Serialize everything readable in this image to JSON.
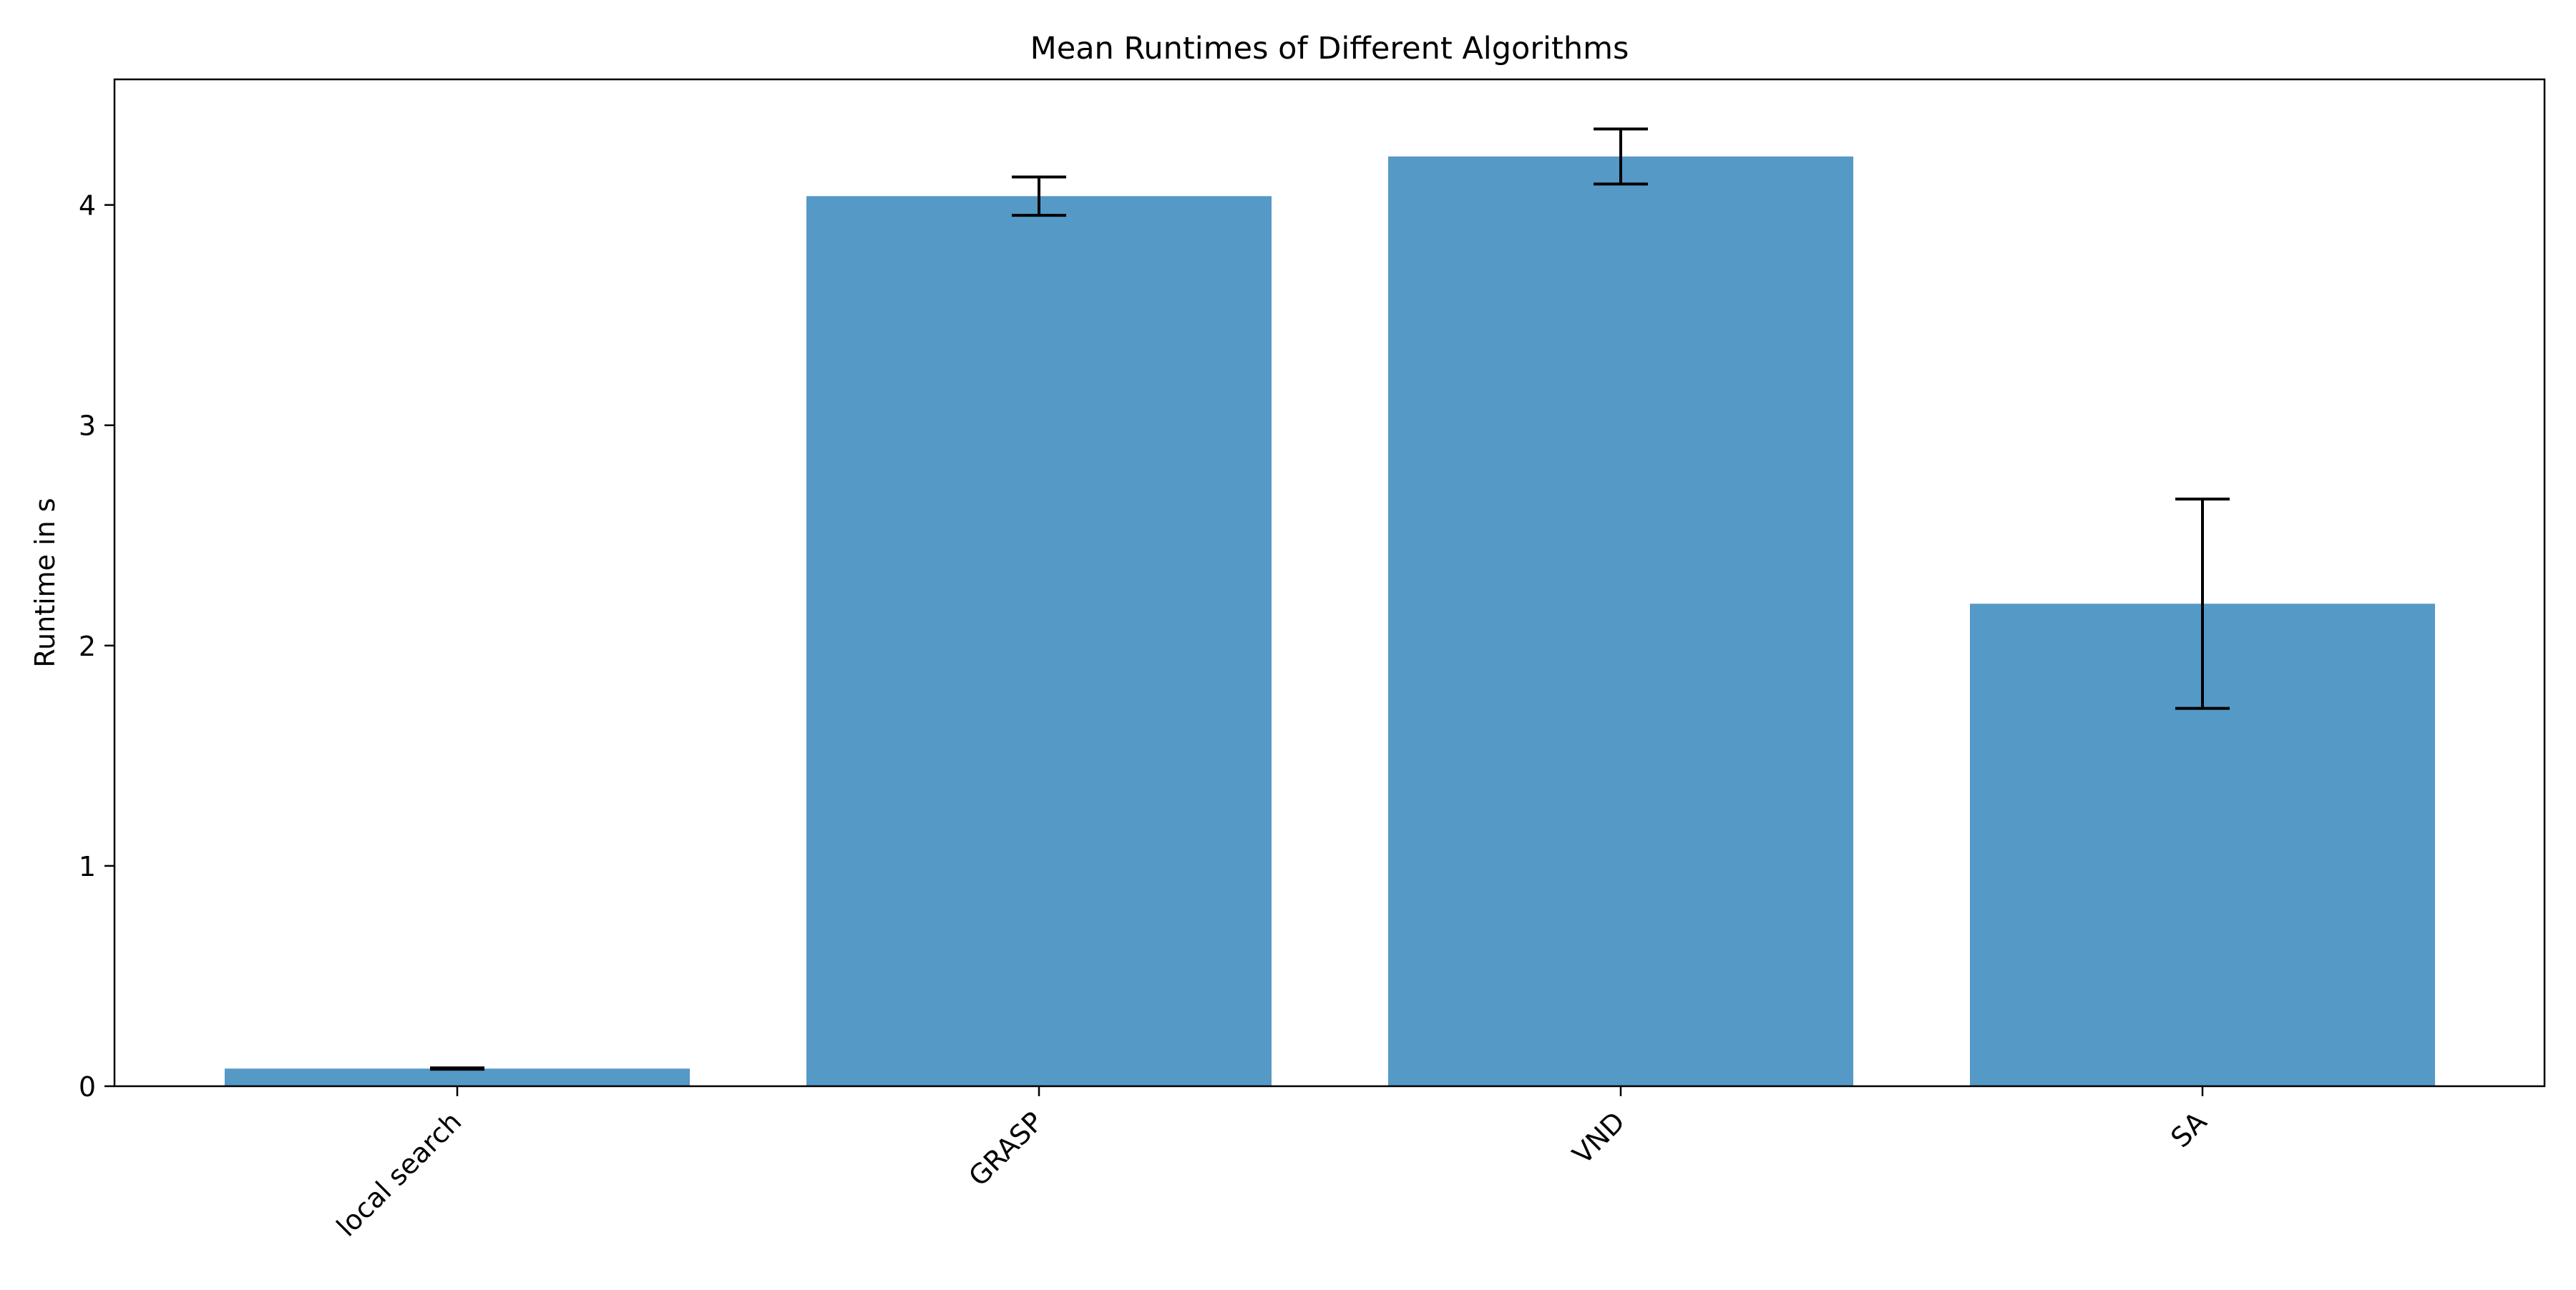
{
  "chart_data": {
    "type": "bar",
    "title": "Mean Runtimes of Different Algorithms",
    "xlabel": "",
    "ylabel": "Runtime in s",
    "categories": [
      "local search",
      "GRASP",
      "VND",
      "SA"
    ],
    "values": [
      0.08,
      4.04,
      4.22,
      2.19
    ],
    "errors": [
      0.003,
      0.087,
      0.125,
      0.475
    ],
    "ylim": [
      0,
      4.57
    ],
    "yticks": [
      0,
      1,
      2,
      3,
      4
    ],
    "bar_color": "#5599c7",
    "error_color": "#000000",
    "grid": false,
    "legend": "none"
  }
}
